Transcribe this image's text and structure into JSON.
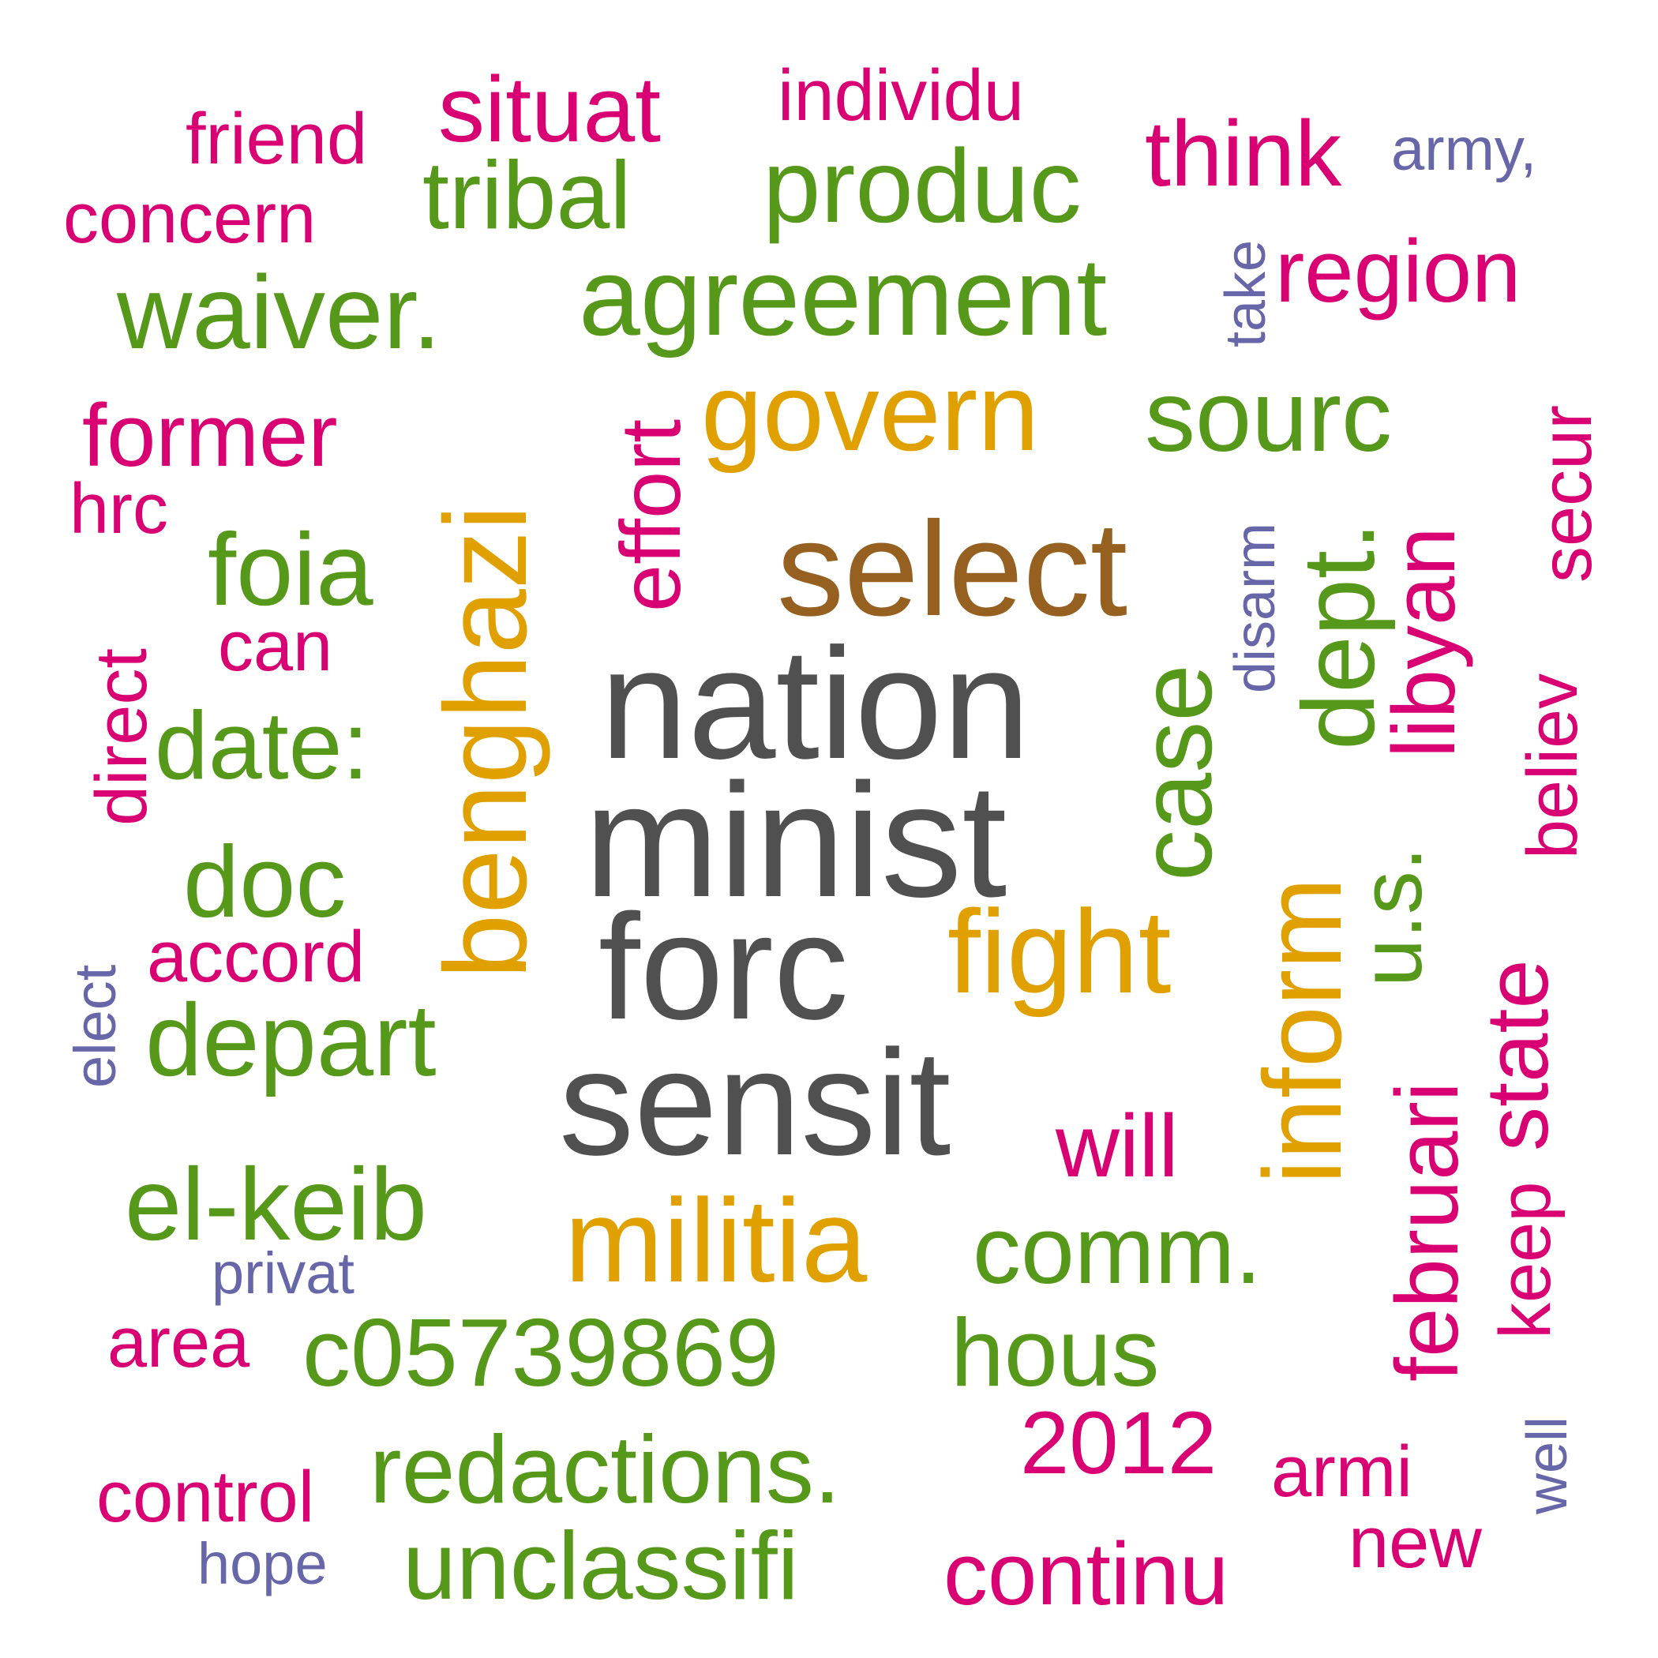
{
  "colors": {
    "dark_gray": "#505050",
    "brown": "#966020",
    "orange": "#e0a000",
    "green": "#55981a",
    "magenta": "#d80073",
    "purple": "#6666a8"
  },
  "words": {
    "nation": "nation",
    "minist": "minist",
    "forc": "forc",
    "sensit": "sensit",
    "select": "select",
    "benghazi": "benghazi",
    "govern": "govern",
    "fight": "fight",
    "militia": "militia",
    "inform": "inform",
    "agreement": "agreement",
    "produc": "produc",
    "waiver": "waiver.",
    "tribal": "tribal",
    "sourc": "sourc",
    "foia": "foia",
    "date": "date:",
    "doc": "doc",
    "depart": "depart",
    "el_keib": "el-keib",
    "case": "case",
    "dept": "dept.",
    "us": "u.s.",
    "comm": "comm.",
    "c05739869": "c05739869",
    "hous": "hous",
    "redactions": "redactions.",
    "unclassifi": "unclassifi",
    "friend": "friend",
    "situat": "situat",
    "individu": "individu",
    "think": "think",
    "concern": "concern",
    "region": "region",
    "former": "former",
    "hrc": "hrc",
    "effort": "effort",
    "can": "can",
    "direct": "direct",
    "accord": "accord",
    "libyan": "libyan",
    "secur": "secur",
    "believ": "believ",
    "state": "state",
    "keep": "keep",
    "februari": "februari",
    "will": "will",
    "area": "area",
    "year_2012": "2012",
    "armi": "armi",
    "control": "control",
    "new": "new",
    "continu": "continu",
    "army": "army,",
    "take": "take",
    "disarm": "disarm",
    "elect": "elect",
    "privat": "privat",
    "hope": "hope",
    "well": "well"
  }
}
